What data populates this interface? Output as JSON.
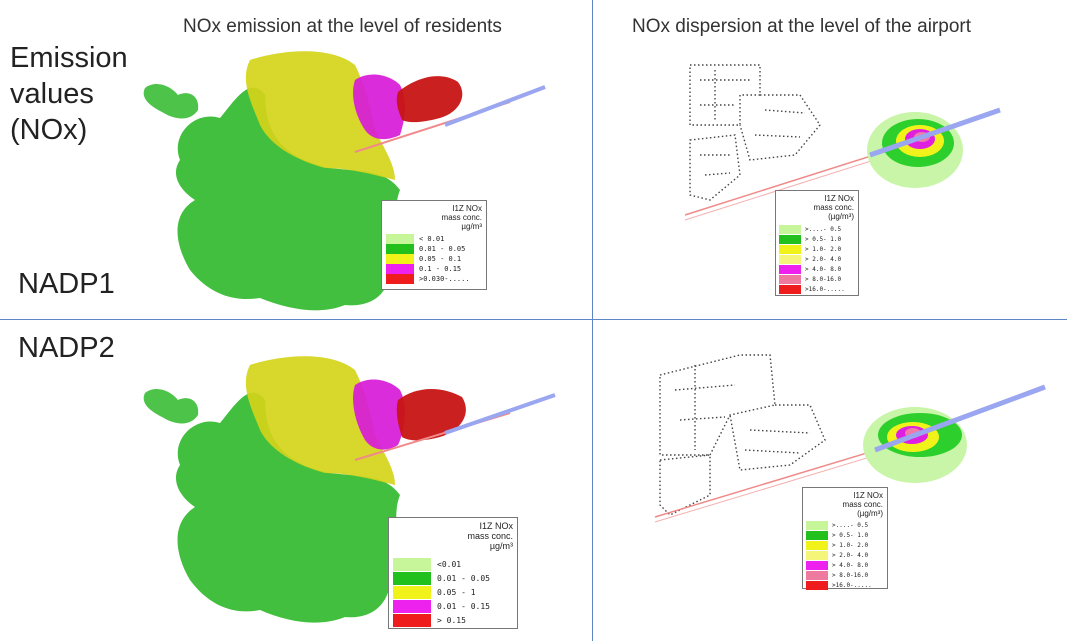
{
  "columns": {
    "left_title": "NOx emission at the level of residents",
    "right_title": "NOx dispersion at the level of the airport"
  },
  "rows": {
    "header_label_lines": [
      "Emission",
      "values",
      "(NOx)"
    ],
    "nadp1_label": "NADP1",
    "nadp2_label": "NADP2"
  },
  "legends": {
    "emission_nadp1": {
      "title_lines": [
        "I1Z NOx",
        "mass conc.",
        "µg/m³"
      ],
      "items": [
        {
          "color": "#c7f59a",
          "label": "< 0.01"
        },
        {
          "color": "#22c01d",
          "label": "0.01 - 0.05"
        },
        {
          "color": "#f2f21b",
          "label": "0.05 - 0.1"
        },
        {
          "color": "#ee22ee",
          "label": "0.1 - 0.15"
        },
        {
          "color": "#ee1c1c",
          "label": ">0.030-....."
        }
      ]
    },
    "dispersion_nadp1": {
      "title_lines": [
        "I1Z NOx",
        "mass conc.",
        "(µg/m³)"
      ],
      "items": [
        {
          "color": "#c7f59a",
          "label": ">....- 0.5"
        },
        {
          "color": "#22c01d",
          "label": "> 0.5- 1.0"
        },
        {
          "color": "#f2f21b",
          "label": "> 1.0- 2.0"
        },
        {
          "color": "#f5f57a",
          "label": "> 2.0- 4.0"
        },
        {
          "color": "#ee22ee",
          "label": "> 4.0- 8.0"
        },
        {
          "color": "#ee7aa0",
          "label": "> 8.0-16.0"
        },
        {
          "color": "#ee1c1c",
          "label": ">16.0-....."
        }
      ]
    },
    "emission_nadp2": {
      "title_lines": [
        "I1Z NOx",
        "mass conc.",
        "µg/m³"
      ],
      "items": [
        {
          "color": "#c7f59a",
          "label": "<0.01"
        },
        {
          "color": "#22c01d",
          "label": "0.01 - 0.05"
        },
        {
          "color": "#f2f21b",
          "label": "0.05 - 1"
        },
        {
          "color": "#ee22ee",
          "label": "0.01 - 0.15"
        },
        {
          "color": "#ee1c1c",
          "label": "> 0.15"
        }
      ]
    },
    "dispersion_nadp2": {
      "title_lines": [
        "I1Z NOx",
        "mass conc.",
        "(µg/m³)"
      ],
      "items": [
        {
          "color": "#c7f59a",
          "label": ">....- 0.5"
        },
        {
          "color": "#22c01d",
          "label": "> 0.5- 1.0"
        },
        {
          "color": "#f2f21b",
          "label": "> 1.0- 2.0"
        },
        {
          "color": "#f5f57a",
          "label": "> 2.0- 4.0"
        },
        {
          "color": "#ee22ee",
          "label": "> 4.0- 8.0"
        },
        {
          "color": "#ee7aa0",
          "label": "> 8.0-16.0"
        },
        {
          "color": "#ee1c1c",
          "label": ">16.0-....."
        }
      ]
    }
  },
  "colors": {
    "divider": "#5b87c5",
    "runway": "#9aa6f0",
    "road": "#f08a8a",
    "zone_green": "#2fb82a",
    "zone_yellow": "#d4d41a",
    "zone_magenta": "#d81ad8",
    "zone_red": "#c81414",
    "plume_light": "#c9f5a8",
    "plume_green": "#2dcf2d",
    "plume_yellow": "#f2f21b",
    "plume_magenta": "#e020e0",
    "plume_pink": "#f07aa8"
  }
}
